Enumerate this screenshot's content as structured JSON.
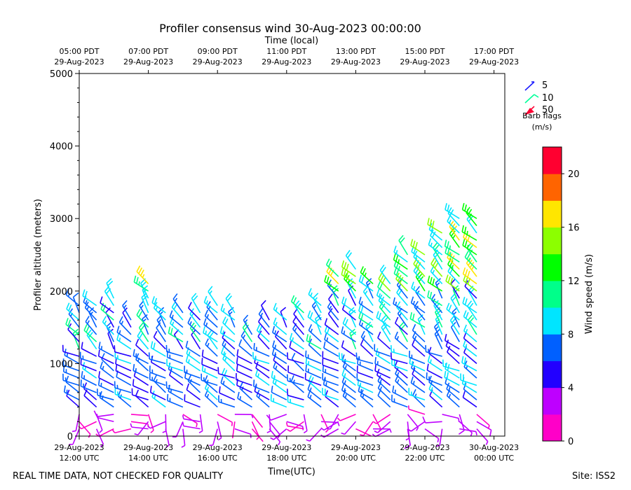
{
  "chart_data": {
    "type": "wind-barb-time-height",
    "title": "Profiler consensus wind 30-Aug-2023 00:00:00",
    "top_axis_label": "Time (local)",
    "top_ticks": [
      {
        "line1": "05:00 PDT",
        "line2": "29-Aug-2023",
        "x": 0
      },
      {
        "line1": "07:00 PDT",
        "line2": "29-Aug-2023",
        "x": 2
      },
      {
        "line1": "09:00 PDT",
        "line2": "29-Aug-2023",
        "x": 4
      },
      {
        "line1": "11:00 PDT",
        "line2": "29-Aug-2023",
        "x": 6
      },
      {
        "line1": "13:00 PDT",
        "line2": "29-Aug-2023",
        "x": 8
      },
      {
        "line1": "15:00 PDT",
        "line2": "29-Aug-2023",
        "x": 10
      },
      {
        "line1": "17:00 PDT",
        "line2": "29-Aug-2023",
        "x": 12
      }
    ],
    "bottom_axis_label": "Time(UTC)",
    "bottom_ticks": [
      {
        "line1": "29-Aug-2023",
        "line2": "12:00 UTC",
        "x": 0
      },
      {
        "line1": "29-Aug-2023",
        "line2": "14:00 UTC",
        "x": 2
      },
      {
        "line1": "29-Aug-2023",
        "line2": "16:00 UTC",
        "x": 4
      },
      {
        "line1": "29-Aug-2023",
        "line2": "18:00 UTC",
        "x": 6
      },
      {
        "line1": "29-Aug-2023",
        "line2": "20:00 UTC",
        "x": 8
      },
      {
        "line1": "29-Aug-2023",
        "line2": "22:00 UTC",
        "x": 10
      },
      {
        "line1": "30-Aug-2023",
        "line2": "00:00 UTC",
        "x": 12
      }
    ],
    "x_unit": "hours since 29-Aug-2023 12:00 UTC",
    "xlim": [
      0,
      12.3
    ],
    "ylabel": "Profiler altitude (meters)",
    "ylim": [
      0,
      5000
    ],
    "y_ticks": [
      0,
      1000,
      2000,
      3000,
      4000,
      5000
    ],
    "legend_title_1": "Barb flags",
    "legend_title_2": "(m/s)",
    "legend": [
      {
        "label": "5",
        "color": "#1a1aff"
      },
      {
        "label": "10",
        "color": "#00ff99"
      },
      {
        "label": "50",
        "color": "#ff0033"
      }
    ],
    "colorbar_label": "Wind speed (m/s)",
    "colorbar_range": [
      0,
      22
    ],
    "colorbar_ticks": [
      0,
      4,
      8,
      12,
      16,
      20
    ],
    "colorbar_colors": [
      "#ff00c8",
      "#be00ff",
      "#2200ff",
      "#0060ff",
      "#00e5ff",
      "#00ff8a",
      "#00ff00",
      "#8cff00",
      "#ffe600",
      "#ff6400",
      "#ff0030"
    ],
    "profile_times": [
      0,
      0.5,
      1,
      1.5,
      2,
      2.5,
      3,
      3.5,
      4,
      4.5,
      5,
      5.5,
      6,
      6.5,
      7,
      7.5,
      8,
      8.5,
      9,
      9.5,
      10,
      10.5,
      11,
      11.5
    ],
    "profile_tops": [
      1800,
      1800,
      1900,
      1650,
      2100,
      1700,
      1700,
      1700,
      1850,
      1700,
      1450,
      1600,
      1600,
      1700,
      1800,
      2250,
      2300,
      2100,
      2100,
      2500,
      2550,
      2800,
      3000,
      3000
    ]
  },
  "footer": {
    "left": "REAL TIME DATA, NOT CHECKED FOR QUALITY",
    "right": "Site: ISS2"
  }
}
